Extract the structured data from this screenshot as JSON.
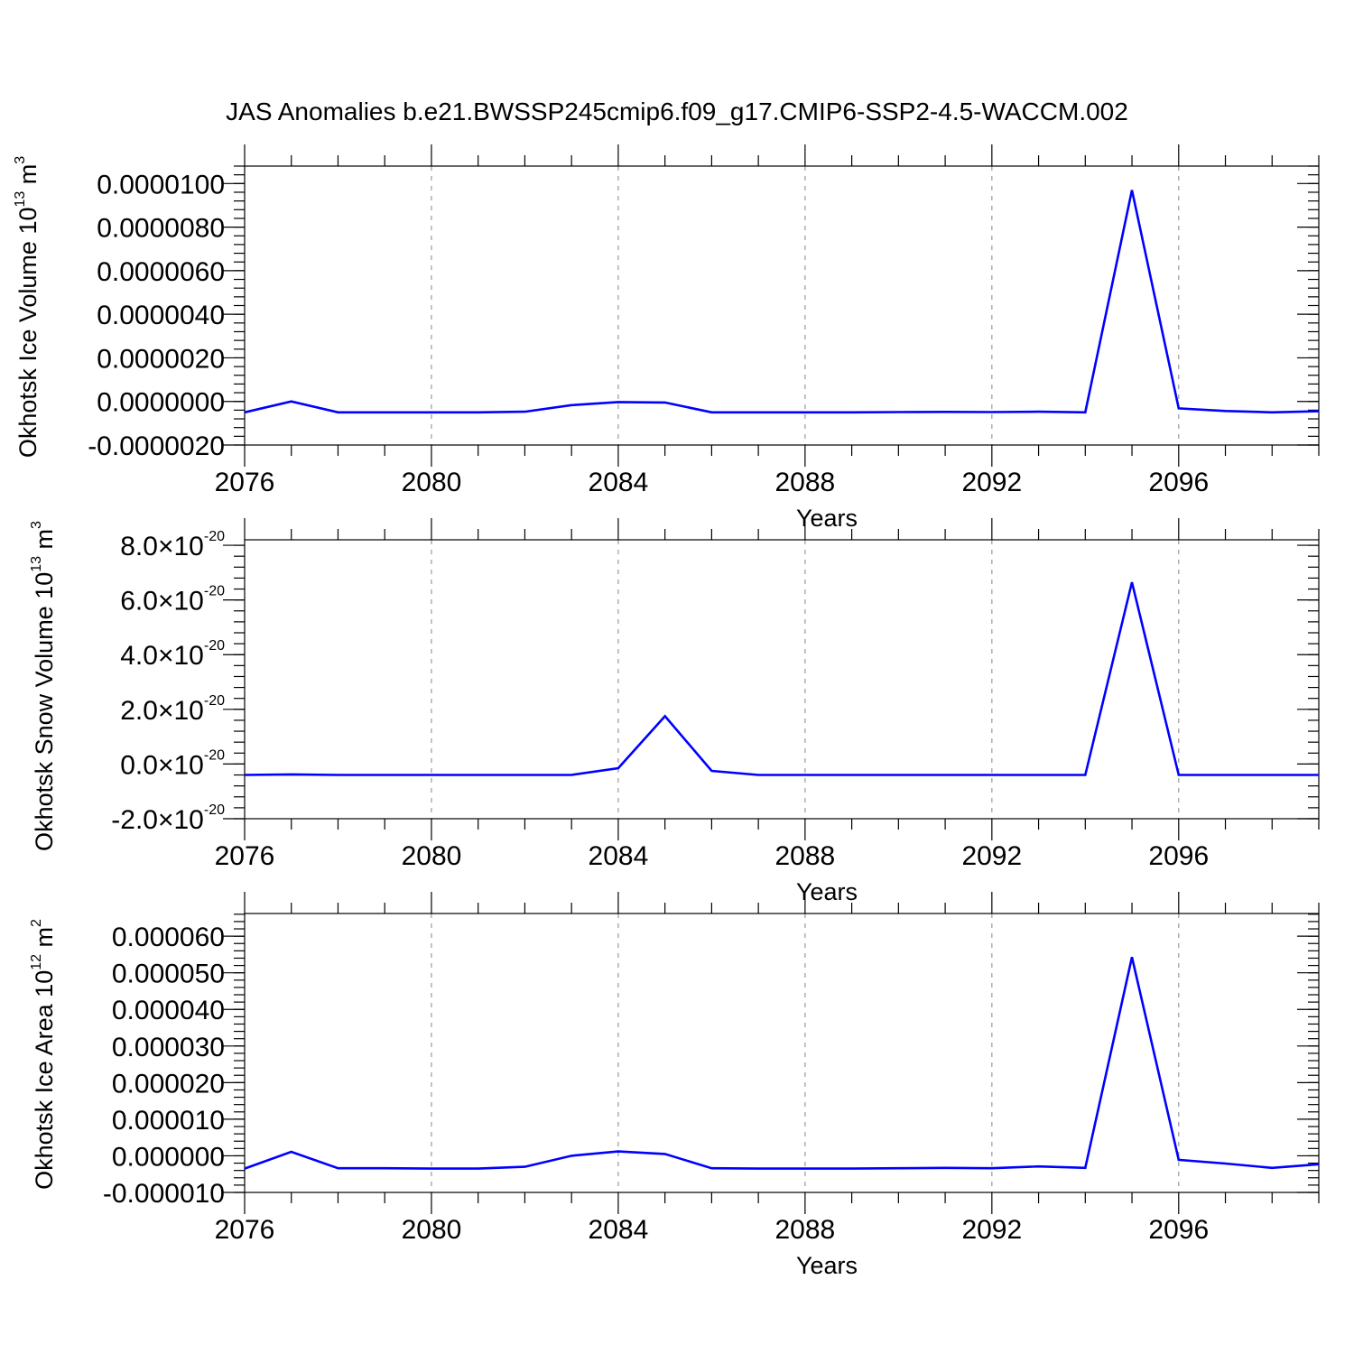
{
  "title": "JAS Anomalies b.e21.BWSSP245cmip6.f09_g17.CMIP6-SSP2-4.5-WACCM.002",
  "colors": {
    "series": "#0000ff",
    "axis": "#000000",
    "grid": "#999999"
  },
  "chart_data": [
    {
      "type": "line",
      "ylabel": {
        "text": "Okhotsk Ice Volume 10",
        "exp": "13",
        "unit": " m",
        "unit_exp": "3"
      },
      "xlabel": "Years",
      "xlim": [
        2076,
        2099
      ],
      "ylim": [
        -2e-06,
        1.08e-05
      ],
      "x_ticks": [
        "2076",
        "2080",
        "2084",
        "2088",
        "2092",
        "2096"
      ],
      "y_ticks": [
        {
          "value": -2e-06,
          "label": "-0.0000020"
        },
        {
          "value": 0.0,
          "label": "0.0000000"
        },
        {
          "value": 2e-06,
          "label": "0.0000020"
        },
        {
          "value": 4e-06,
          "label": "0.0000040"
        },
        {
          "value": 6e-06,
          "label": "0.0000060"
        },
        {
          "value": 8e-06,
          "label": "0.0000080"
        },
        {
          "value": 1e-05,
          "label": "0.0000100"
        }
      ],
      "grid": "vertical dashed at major x ticks",
      "x": [
        2076,
        2077,
        2078,
        2079,
        2080,
        2081,
        2082,
        2083,
        2084,
        2085,
        2086,
        2087,
        2088,
        2089,
        2090,
        2091,
        2092,
        2093,
        2094,
        2095,
        2096,
        2097,
        2098,
        2099
      ],
      "series": [
        {
          "values": [
            -5e-07,
            0.0,
            -5e-07,
            -5e-07,
            -5e-07,
            -5e-07,
            -4.7e-07,
            -1.7e-07,
            -3e-08,
            -5e-08,
            -5e-07,
            -5e-07,
            -5e-07,
            -5e-07,
            -4.9e-07,
            -4.8e-07,
            -4.9e-07,
            -4.7e-07,
            -5e-07,
            9.7e-06,
            -3.2e-07,
            -4.4e-07,
            -5e-07,
            -4.5e-07
          ]
        }
      ]
    },
    {
      "type": "line",
      "ylabel": {
        "text": "Okhotsk Snow Volume 10",
        "exp": "13",
        "unit": " m",
        "unit_exp": "3"
      },
      "xlabel": "Years",
      "xlim": [
        2076,
        2099
      ],
      "ylim": [
        -2e-20,
        8.2e-20
      ],
      "x_ticks": [
        "2076",
        "2080",
        "2084",
        "2088",
        "2092",
        "2096"
      ],
      "y_ticks": [
        {
          "value": -2e-20,
          "mantissa": "-2.0",
          "times": "×",
          "base": "10",
          "exp": "-20"
        },
        {
          "value": 0.0,
          "mantissa": "0.0",
          "times": "×",
          "base": "10",
          "exp": "-20"
        },
        {
          "value": 2e-20,
          "mantissa": "2.0",
          "times": "×",
          "base": "10",
          "exp": "-20"
        },
        {
          "value": 4e-20,
          "mantissa": "4.0",
          "times": "×",
          "base": "10",
          "exp": "-20"
        },
        {
          "value": 6e-20,
          "mantissa": "6.0",
          "times": "×",
          "base": "10",
          "exp": "-20"
        },
        {
          "value": 8e-20,
          "mantissa": "8.0",
          "times": "×",
          "base": "10",
          "exp": "-20"
        }
      ],
      "grid": "vertical dashed at major x ticks",
      "x": [
        2076,
        2077,
        2078,
        2079,
        2080,
        2081,
        2082,
        2083,
        2084,
        2085,
        2086,
        2087,
        2088,
        2089,
        2090,
        2091,
        2092,
        2093,
        2094,
        2095,
        2096,
        2097,
        2098,
        2099
      ],
      "series": [
        {
          "values": [
            -4e-21,
            -3.8e-21,
            -4e-21,
            -4e-21,
            -4e-21,
            -4e-21,
            -4e-21,
            -4e-21,
            -1.5e-21,
            1.75e-20,
            -2.5e-21,
            -4e-21,
            -4e-21,
            -4e-21,
            -4e-21,
            -4e-21,
            -4e-21,
            -4e-21,
            -4e-21,
            6.65e-20,
            -4e-21,
            -4e-21,
            -4e-21,
            -4e-21
          ]
        }
      ]
    },
    {
      "type": "line",
      "ylabel": {
        "text": "Okhotsk Ice Area 10",
        "exp": "12",
        "unit": " m",
        "unit_exp": "2"
      },
      "xlabel": "Years",
      "xlim": [
        2076,
        2099
      ],
      "ylim": [
        -1e-05,
        6.62e-05
      ],
      "x_ticks": [
        "2076",
        "2080",
        "2084",
        "2088",
        "2092",
        "2096"
      ],
      "y_ticks": [
        {
          "value": -1e-05,
          "label": "-0.000010"
        },
        {
          "value": 0.0,
          "label": "0.000000"
        },
        {
          "value": 1e-05,
          "label": "0.000010"
        },
        {
          "value": 2e-05,
          "label": "0.000020"
        },
        {
          "value": 3e-05,
          "label": "0.000030"
        },
        {
          "value": 4e-05,
          "label": "0.000040"
        },
        {
          "value": 5e-05,
          "label": "0.000050"
        },
        {
          "value": 6e-05,
          "label": "0.000060"
        }
      ],
      "grid": "vertical dashed at major x ticks",
      "x": [
        2076,
        2077,
        2078,
        2079,
        2080,
        2081,
        2082,
        2083,
        2084,
        2085,
        2086,
        2087,
        2088,
        2089,
        2090,
        2091,
        2092,
        2093,
        2094,
        2095,
        2096,
        2097,
        2098,
        2099
      ],
      "series": [
        {
          "values": [
            -3.5e-06,
            1.1e-06,
            -3.4e-06,
            -3.4e-06,
            -3.5e-06,
            -3.5e-06,
            -3e-06,
            0.0,
            1.2e-06,
            5e-07,
            -3.4e-06,
            -3.5e-06,
            -3.5e-06,
            -3.5e-06,
            -3.4e-06,
            -3.3e-06,
            -3.4e-06,
            -2.9e-06,
            -3.3e-06,
            5.43e-05,
            -1.1e-06,
            -2.1e-06,
            -3.3e-06,
            -2.3e-06
          ]
        }
      ]
    }
  ]
}
